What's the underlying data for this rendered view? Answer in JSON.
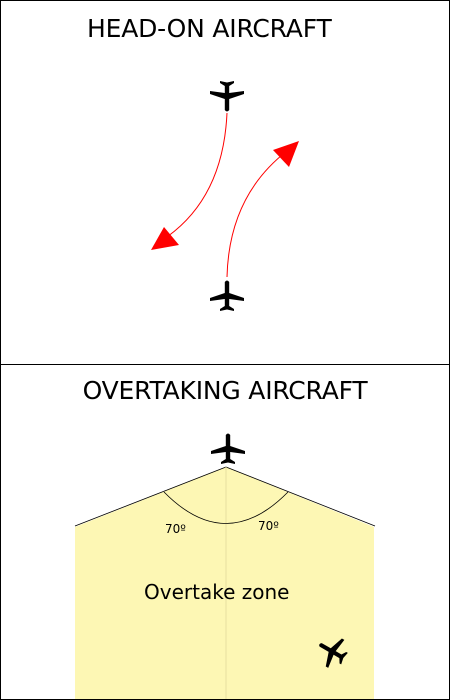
{
  "head_on": {
    "title": "HEAD-ON AIRCRAFT"
  },
  "overtaking": {
    "title": "OVERTAKING AIRCRAFT",
    "angle_left": "70º",
    "angle_right": "70º",
    "zone_label": "Overtake zone"
  },
  "colors": {
    "arrow": "#ff0000",
    "zone_fill": "#fdf7b4",
    "aircraft": "#000000"
  },
  "icons": [
    "airplane-icon",
    "airplane-icon",
    "airplane-icon",
    "airplane-icon"
  ]
}
